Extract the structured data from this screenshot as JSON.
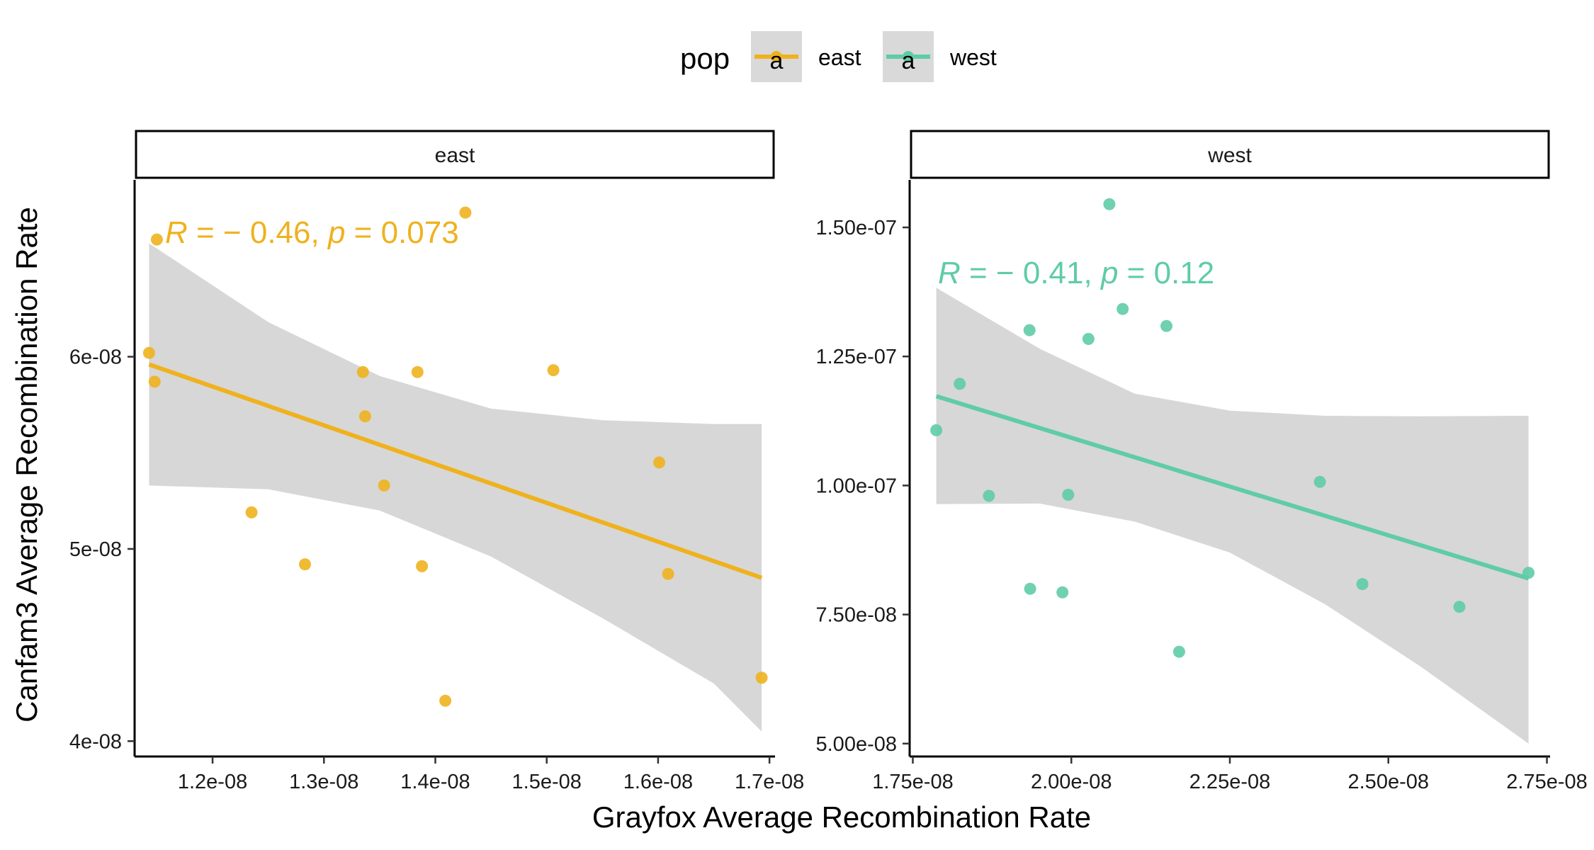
{
  "chart_data": {
    "type": "scatter",
    "xlabel": "Grayfox Average Recombination Rate",
    "ylabel": "Canfam3 Average Recombination Rate",
    "legend": {
      "title": "pop",
      "placement": "top",
      "entries": [
        {
          "label": "east",
          "color": "#EFB21E",
          "glyph": "a"
        },
        {
          "label": "west",
          "color": "#5FCCA6",
          "glyph": "a"
        }
      ]
    },
    "panels": [
      {
        "strip": "east",
        "color": "#EFB21E",
        "annotation": {
          "r_label": "R",
          "r_value": "− 0.46",
          "p_label": "p",
          "p_value": "0.073"
        },
        "xlim": [
          1.13e-08,
          1.705e-08
        ],
        "ylim": [
          3.92e-08,
          6.92e-08
        ],
        "x_ticks": [
          {
            "value": 1.2e-08,
            "label": "1.2e-08"
          },
          {
            "value": 1.3e-08,
            "label": "1.3e-08"
          },
          {
            "value": 1.4e-08,
            "label": "1.4e-08"
          },
          {
            "value": 1.5e-08,
            "label": "1.5e-08"
          },
          {
            "value": 1.6e-08,
            "label": "1.6e-08"
          },
          {
            "value": 1.7e-08,
            "label": "1.7e-08"
          }
        ],
        "y_ticks": [
          {
            "value": 4e-08,
            "label": "4e-08"
          },
          {
            "value": 5e-08,
            "label": "5e-08"
          },
          {
            "value": 6e-08,
            "label": "6e-08"
          }
        ],
        "points": [
          {
            "x": 1.143e-08,
            "y": 6.02e-08
          },
          {
            "x": 1.148e-08,
            "y": 5.87e-08
          },
          {
            "x": 1.15e-08,
            "y": 6.61e-08
          },
          {
            "x": 1.235e-08,
            "y": 5.19e-08
          },
          {
            "x": 1.283e-08,
            "y": 4.92e-08
          },
          {
            "x": 1.335e-08,
            "y": 5.92e-08
          },
          {
            "x": 1.337e-08,
            "y": 5.69e-08
          },
          {
            "x": 1.354e-08,
            "y": 5.33e-08
          },
          {
            "x": 1.384e-08,
            "y": 5.92e-08
          },
          {
            "x": 1.388e-08,
            "y": 4.91e-08
          },
          {
            "x": 1.409e-08,
            "y": 4.21e-08
          },
          {
            "x": 1.427e-08,
            "y": 6.75e-08
          },
          {
            "x": 1.506e-08,
            "y": 5.93e-08
          },
          {
            "x": 1.601e-08,
            "y": 5.45e-08
          },
          {
            "x": 1.609e-08,
            "y": 4.87e-08
          },
          {
            "x": 1.693e-08,
            "y": 4.33e-08
          }
        ],
        "fit": {
          "x": [
            1.143e-08,
            1.693e-08
          ],
          "y": [
            5.96e-08,
            4.85e-08
          ]
        },
        "ci_band": {
          "x": [
            1.143e-08,
            1.25e-08,
            1.35e-08,
            1.45e-08,
            1.55e-08,
            1.65e-08,
            1.693e-08
          ],
          "upper": [
            6.59e-08,
            6.18e-08,
            5.9e-08,
            5.73e-08,
            5.67e-08,
            5.65e-08,
            5.65e-08
          ],
          "lower": [
            5.33e-08,
            5.31e-08,
            5.2e-08,
            4.96e-08,
            4.64e-08,
            4.3e-08,
            4.05e-08
          ]
        }
      },
      {
        "strip": "west",
        "color": "#5FCCA6",
        "annotation": {
          "r_label": "R",
          "r_value": "− 0.41",
          "p_label": "p",
          "p_value": "0.12"
        },
        "xlim": [
          1.745e-08,
          2.755e-08
        ],
        "ylim": [
          4.75e-08,
          1.592e-07
        ],
        "x_ticks": [
          {
            "value": 1.75e-08,
            "label": "1.75e-08"
          },
          {
            "value": 2e-08,
            "label": "2.00e-08"
          },
          {
            "value": 2.25e-08,
            "label": "2.25e-08"
          },
          {
            "value": 2.5e-08,
            "label": "2.50e-08"
          },
          {
            "value": 2.75e-08,
            "label": "2.75e-08"
          }
        ],
        "y_ticks": [
          {
            "value": 5e-08,
            "label": "5.00e-08"
          },
          {
            "value": 7.5e-08,
            "label": "7.50e-08"
          },
          {
            "value": 1e-07,
            "label": "1.00e-07"
          },
          {
            "value": 1.25e-07,
            "label": "1.25e-07"
          },
          {
            "value": 1.5e-07,
            "label": "1.50e-07"
          }
        ],
        "points": [
          {
            "x": 1.787e-08,
            "y": 1.107e-07
          },
          {
            "x": 1.824e-08,
            "y": 1.197e-07
          },
          {
            "x": 1.87e-08,
            "y": 9.8e-08
          },
          {
            "x": 1.934e-08,
            "y": 1.301e-07
          },
          {
            "x": 1.935e-08,
            "y": 8e-08
          },
          {
            "x": 1.986e-08,
            "y": 7.93e-08
          },
          {
            "x": 1.995e-08,
            "y": 9.82e-08
          },
          {
            "x": 2.027e-08,
            "y": 1.284e-07
          },
          {
            "x": 2.06e-08,
            "y": 1.545e-07
          },
          {
            "x": 2.081e-08,
            "y": 1.342e-07
          },
          {
            "x": 2.15e-08,
            "y": 1.309e-07
          },
          {
            "x": 2.17e-08,
            "y": 6.78e-08
          },
          {
            "x": 2.392e-08,
            "y": 1.007e-07
          },
          {
            "x": 2.459e-08,
            "y": 8.09e-08
          },
          {
            "x": 2.612e-08,
            "y": 7.65e-08
          },
          {
            "x": 2.721e-08,
            "y": 8.31e-08
          }
        ],
        "fit": {
          "x": [
            1.787e-08,
            2.721e-08
          ],
          "y": [
            1.173e-07,
            8.2e-08
          ]
        },
        "ci_band": {
          "x": [
            1.787e-08,
            1.95e-08,
            2.1e-08,
            2.25e-08,
            2.4e-08,
            2.55e-08,
            2.721e-08
          ],
          "upper": [
            1.383e-07,
            1.265e-07,
            1.178e-07,
            1.145e-07,
            1.135e-07,
            1.134e-07,
            1.135e-07
          ],
          "lower": [
            9.64e-08,
            9.65e-08,
            9.3e-08,
            8.7e-08,
            7.7e-08,
            6.5e-08,
            5e-08
          ]
        }
      }
    ]
  }
}
